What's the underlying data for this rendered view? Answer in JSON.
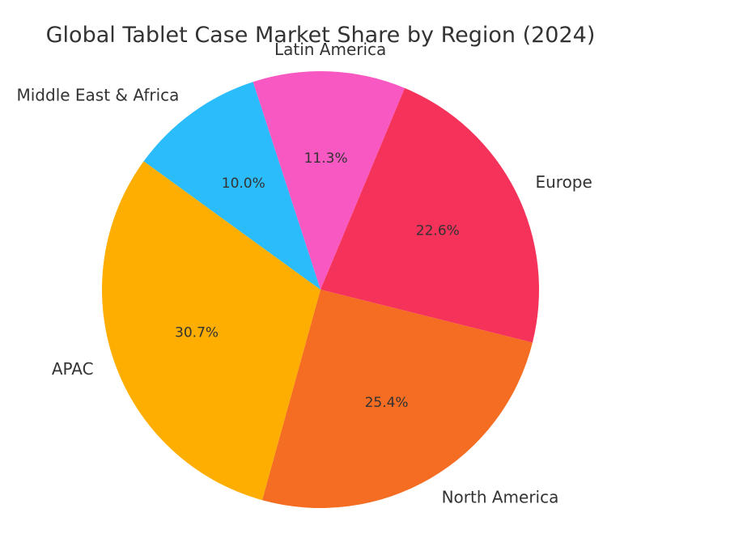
{
  "chart_data": {
    "type": "pie",
    "title": "Global Tablet Case Market Share by Region (2024)",
    "categories": [
      "Latin America",
      "Europe",
      "North America",
      "APAC",
      "Middle East & Africa"
    ],
    "values": [
      11.3,
      22.6,
      25.4,
      30.7,
      10.0
    ],
    "value_labels": [
      "11.3%",
      "22.6%",
      "25.4%",
      "30.7%",
      "10.0%"
    ],
    "colors": [
      "#F858C1",
      "#F5325A",
      "#F46D22",
      "#FDAE00",
      "#2BBCFC"
    ],
    "start_angle_deg": 108,
    "direction": "clockwise",
    "legend": "none"
  }
}
